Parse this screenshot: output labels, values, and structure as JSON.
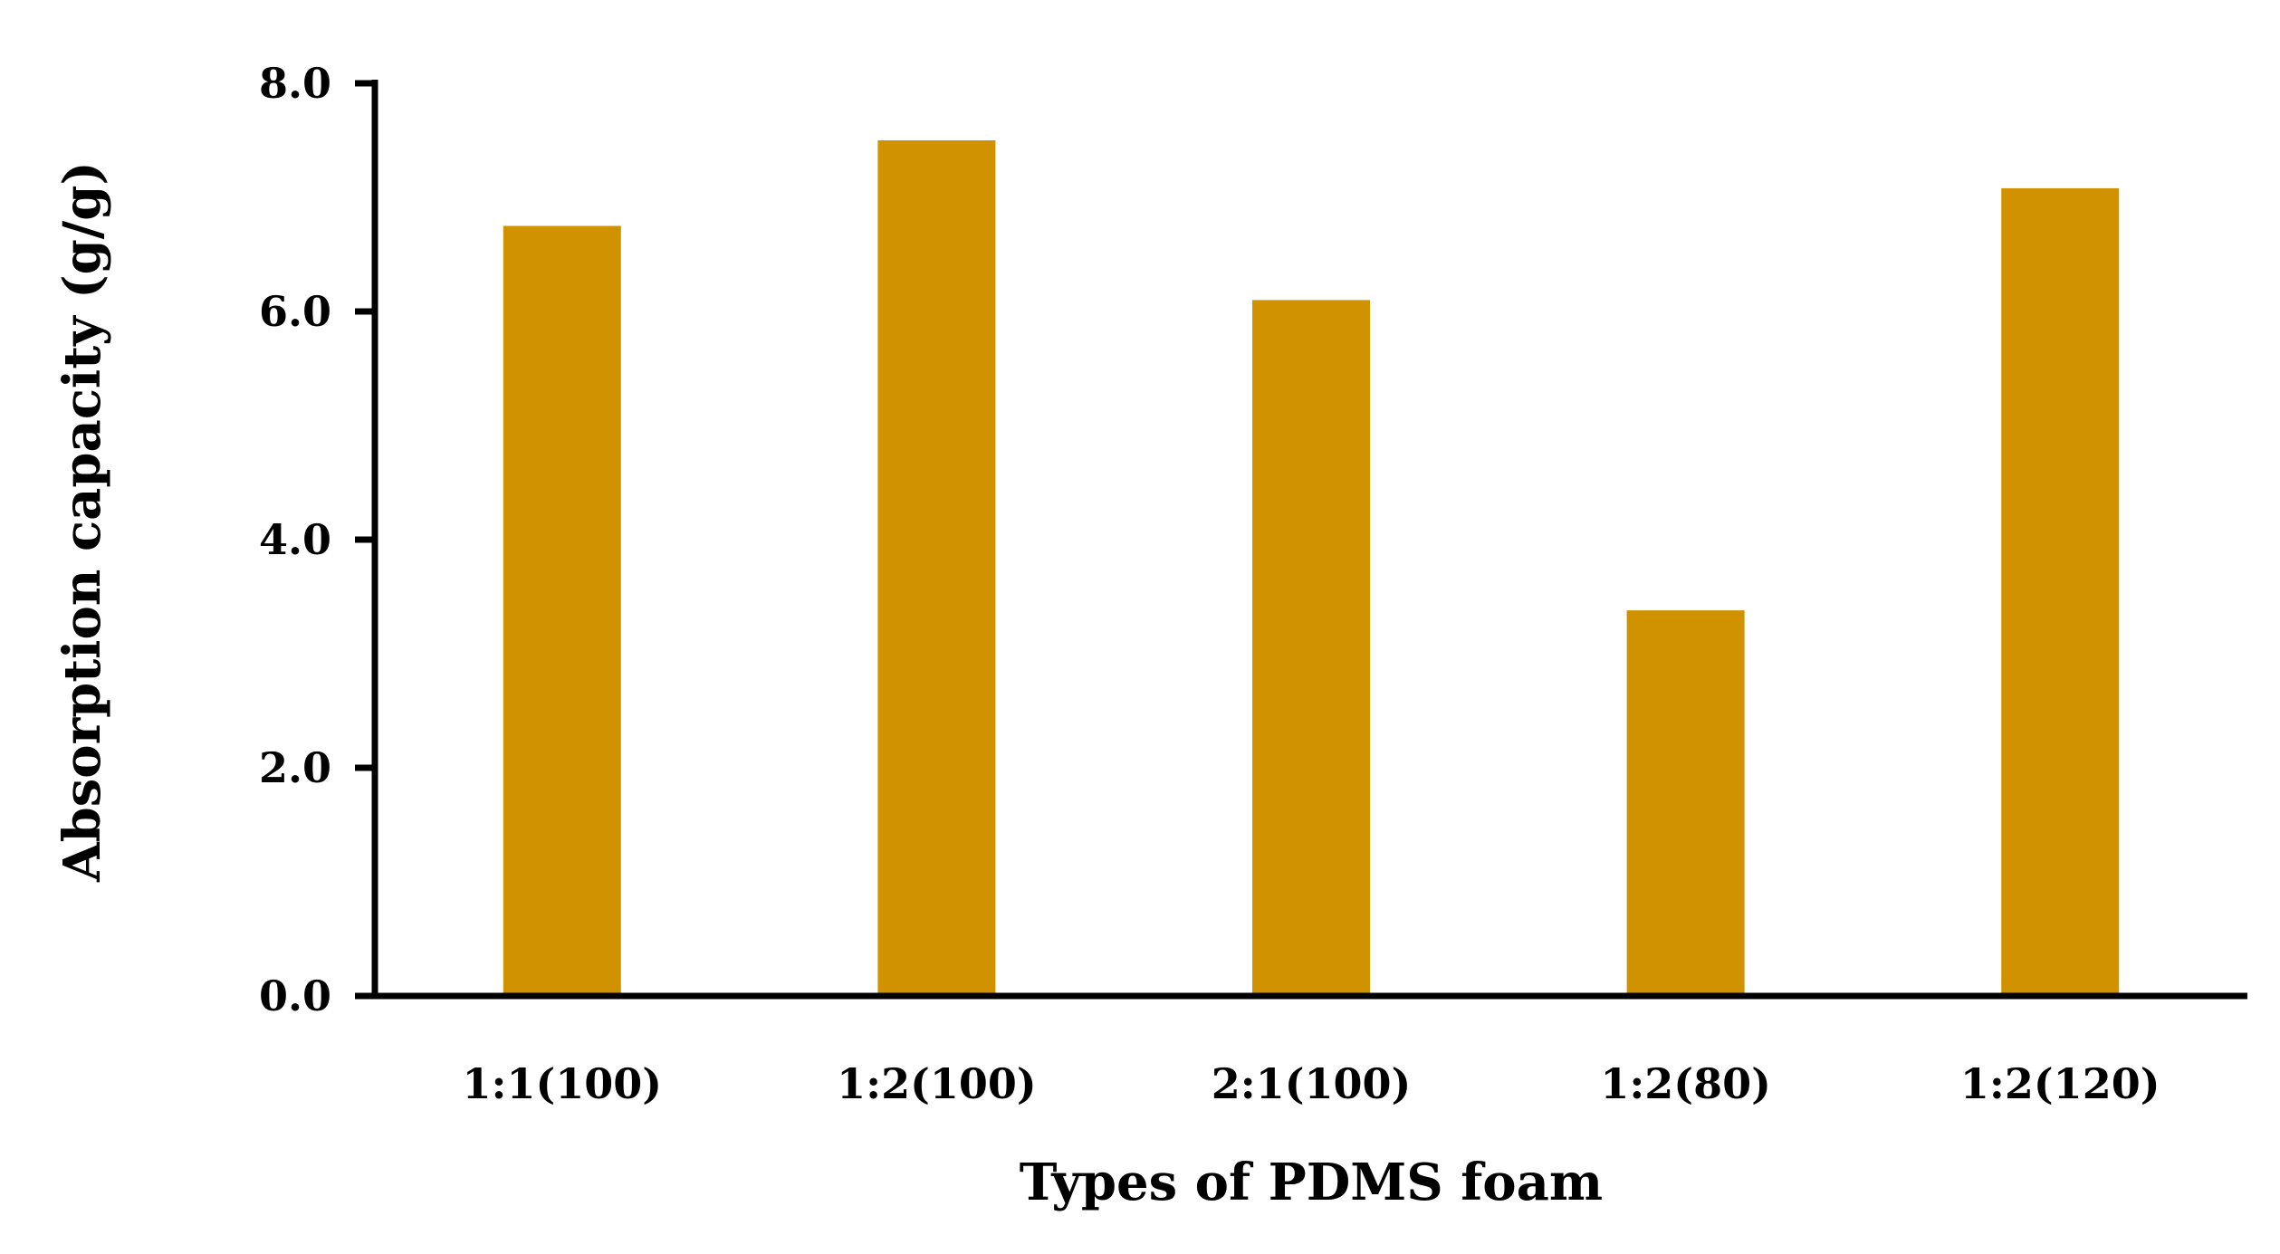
{
  "chart_data": {
    "type": "bar",
    "title": "",
    "xlabel": "Types of PDMS foam",
    "ylabel": "Absorption capacity (g/g)",
    "categories": [
      "1:1(100)",
      "1:2(100)",
      "2:1(100)",
      "1:2(80)",
      "1:2(120)"
    ],
    "values": [
      6.75,
      7.5,
      6.1,
      3.38,
      7.08
    ],
    "ylim": [
      0,
      8
    ],
    "yticks": [
      "0.0",
      "2.0",
      "4.0",
      "6.0",
      "8.0"
    ],
    "grid": false,
    "legend": "none",
    "colors": {
      "bar": "#D19200",
      "axis": "#000000"
    }
  }
}
